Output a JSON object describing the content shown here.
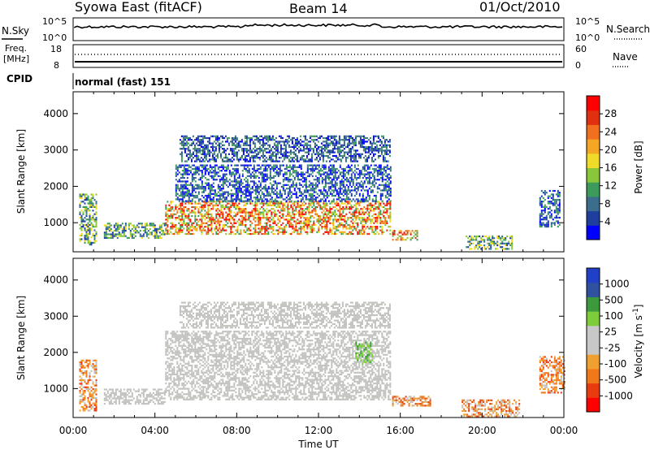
{
  "header": {
    "station": "Syowa East (fitACF)",
    "beam": "Beam 14",
    "date": "01/Oct/2010"
  },
  "top_panels": {
    "nsky_label": "N.Sky",
    "nsky_top": "10^5",
    "nsky_bottom": "10^0",
    "nsearch_label": "N.Search",
    "nsearch_top": "10^5",
    "nsearch_bottom": "10^0",
    "freq_label": "Freq.",
    "freq_unit": "[MHz]",
    "freq_top": "18",
    "freq_bottom": "8",
    "nave_label": "Nave",
    "nave_top": "60",
    "nave_bottom": "0",
    "cpid_label": "CPID",
    "cpid_value": "normal (fast) 151"
  },
  "colors": {
    "power": [
      "#0000ff",
      "#1e3f9e",
      "#3a6e8c",
      "#3c9a5a",
      "#8ac63c",
      "#f0dc28",
      "#f5a623",
      "#f07020",
      "#e03010",
      "#ff0000"
    ],
    "velocity": [
      "#2040c8",
      "#3050a0",
      "#3c9a3c",
      "#7ccc3c",
      "#c8c8c8",
      "#c8c8c8",
      "#f0a030",
      "#f07818",
      "#e83c10",
      "#ff0000"
    ],
    "panel_border": "#000000",
    "velocity_gray": "#c0c0bc"
  },
  "chart_data": [
    {
      "type": "heatmap",
      "name_printed": "",
      "ylabel": "Slant Range [km]",
      "xlabel": "",
      "ylim": [
        200,
        4600
      ],
      "xlim_hours": [
        0,
        24
      ],
      "y_ticks": [
        "1000",
        "2000",
        "3000",
        "4000"
      ],
      "colorbar_label": "Power [dB]",
      "colorbar_ticks": [
        "4",
        "8",
        "12",
        "16",
        "20",
        "24",
        "28"
      ],
      "features": [
        {
          "t_start": 0.3,
          "t_end": 1.1,
          "r_low": 400,
          "r_high": 1800,
          "level": "medium"
        },
        {
          "t_start": 1.5,
          "t_end": 4.5,
          "r_low": 600,
          "r_high": 1000,
          "level": "medium"
        },
        {
          "t_start": 4.5,
          "t_end": 15.5,
          "r_low": 700,
          "r_high": 1600,
          "level": "high"
        },
        {
          "t_start": 5.0,
          "t_end": 15.5,
          "r_low": 1600,
          "r_high": 2600,
          "level": "low"
        },
        {
          "t_start": 5.2,
          "t_end": 15.5,
          "r_low": 2700,
          "r_high": 3400,
          "level": "low"
        },
        {
          "t_start": 15.6,
          "t_end": 16.8,
          "r_low": 550,
          "r_high": 800,
          "level": "high"
        },
        {
          "t_start": 19.2,
          "t_end": 21.5,
          "r_low": 300,
          "r_high": 650,
          "level": "medium"
        },
        {
          "t_start": 22.8,
          "t_end": 23.8,
          "r_low": 900,
          "r_high": 1900,
          "level": "low"
        }
      ]
    },
    {
      "type": "heatmap",
      "ylabel": "Slant Range [km]",
      "xlabel": "Time UT",
      "ylim": [
        200,
        4600
      ],
      "xlim_hours": [
        0,
        24
      ],
      "x_ticks": [
        "00:00",
        "04:00",
        "08:00",
        "12:00",
        "16:00",
        "20:00",
        "00:00"
      ],
      "y_ticks": [
        "1000",
        "2000",
        "3000",
        "4000"
      ],
      "colorbar_label": "Velocity [m s",
      "colorbar_unit_exp": "-1",
      "colorbar_ticks": [
        "1000",
        "500",
        "100",
        "25",
        "-25",
        "-100",
        "-500",
        "-1000"
      ],
      "features": [
        {
          "t_start": 0.3,
          "t_end": 1.1,
          "r_low": 400,
          "r_high": 1800,
          "level": "negative"
        },
        {
          "t_start": 1.5,
          "t_end": 4.5,
          "r_low": 600,
          "r_high": 1000,
          "level": "zero"
        },
        {
          "t_start": 4.5,
          "t_end": 15.5,
          "r_low": 700,
          "r_high": 2600,
          "level": "zero"
        },
        {
          "t_start": 5.2,
          "t_end": 15.5,
          "r_low": 2700,
          "r_high": 3400,
          "level": "zero"
        },
        {
          "t_start": 13.8,
          "t_end": 14.6,
          "r_low": 1700,
          "r_high": 2300,
          "level": "positive"
        },
        {
          "t_start": 15.6,
          "t_end": 17.5,
          "r_low": 550,
          "r_high": 800,
          "level": "negative"
        },
        {
          "t_start": 19.0,
          "t_end": 21.8,
          "r_low": 250,
          "r_high": 700,
          "level": "negative"
        },
        {
          "t_start": 22.8,
          "t_end": 24.0,
          "r_low": 900,
          "r_high": 1900,
          "level": "negative"
        }
      ]
    }
  ]
}
